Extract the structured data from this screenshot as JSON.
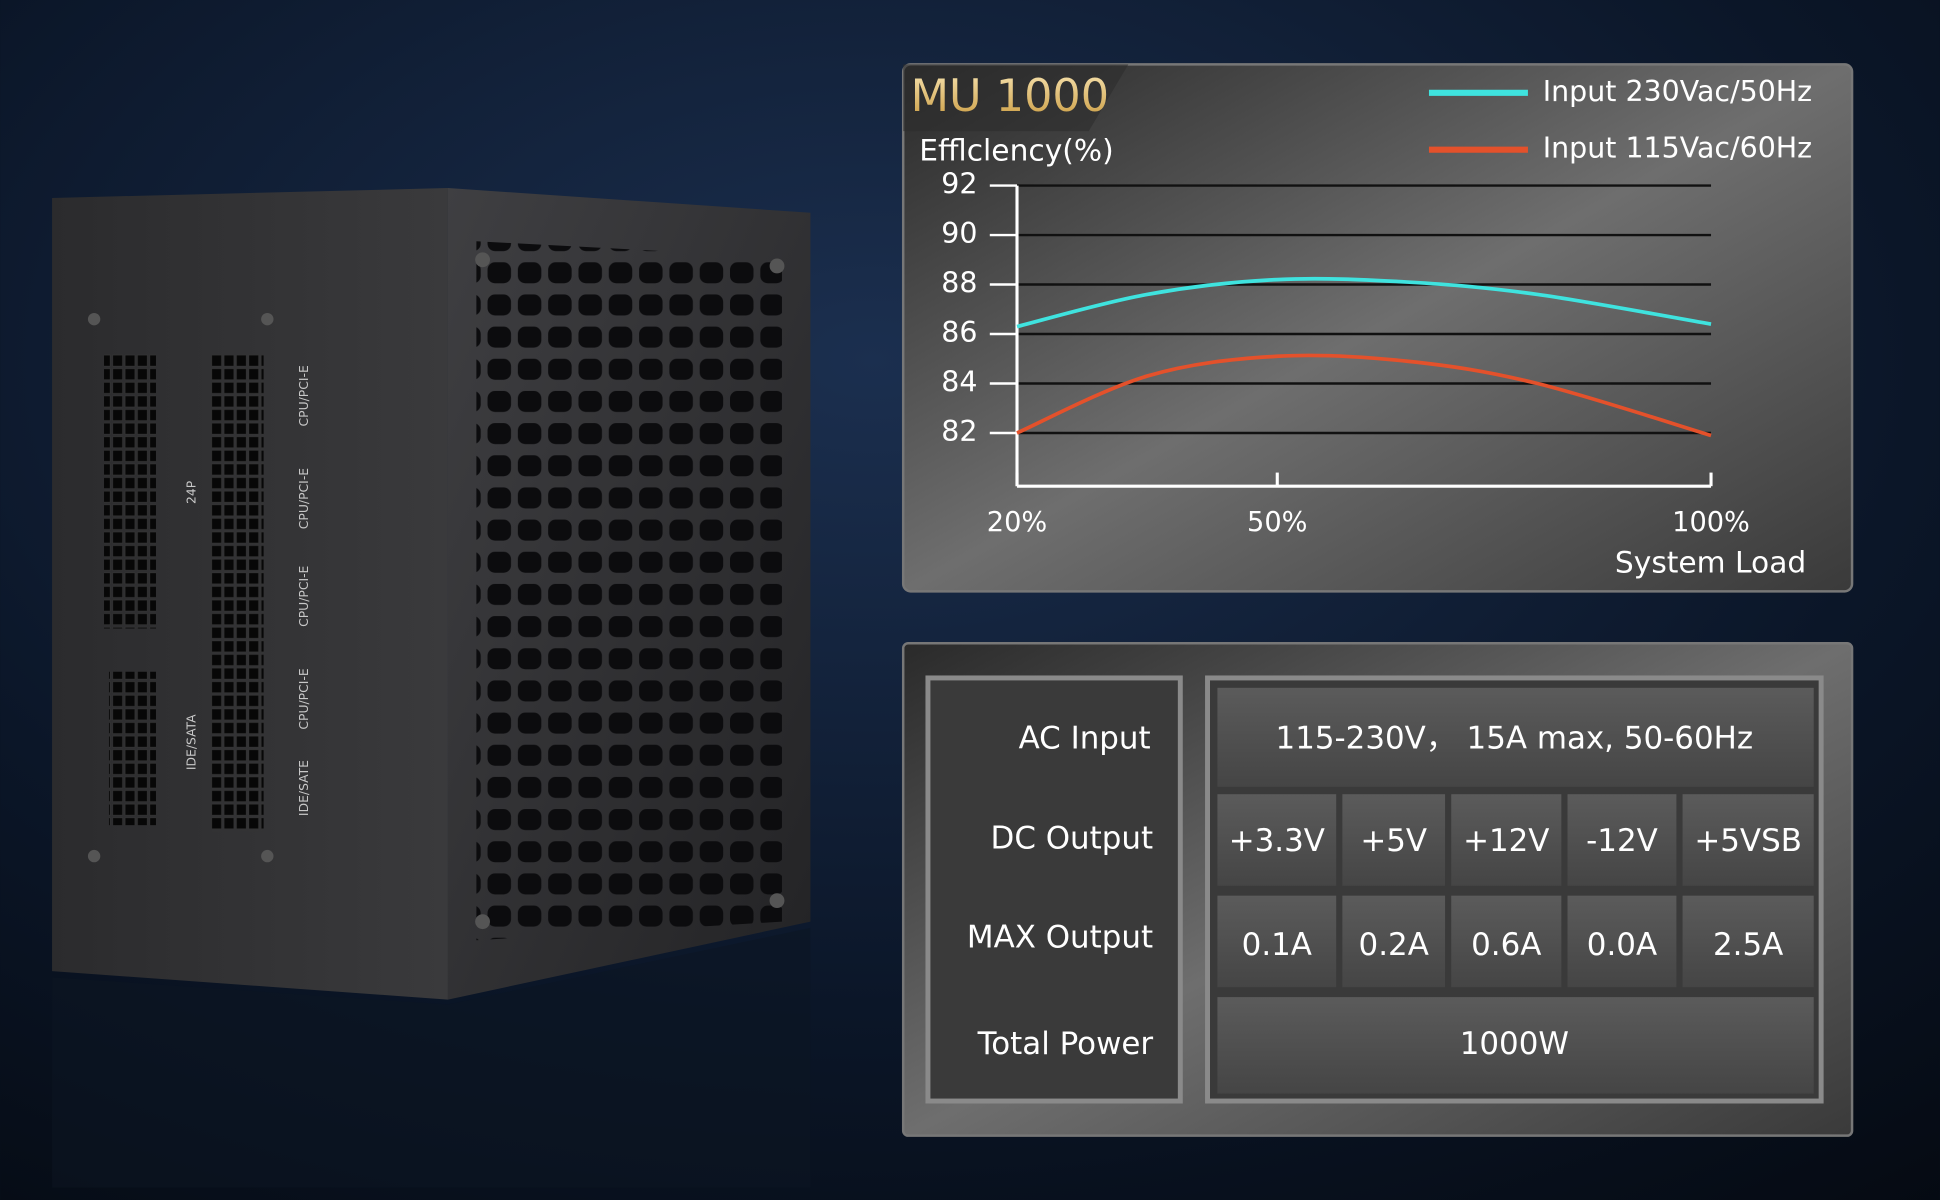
{
  "chart_data": {
    "type": "line",
    "title": "MU 1000",
    "y_label": "Efflclency(%)",
    "x_label": "System Load",
    "x": [
      20,
      35,
      50,
      65,
      80,
      100
    ],
    "series": [
      {
        "name": "Input 230Vac/50Hz",
        "color": "#3fe3df",
        "values": [
          86.3,
          87.6,
          88.2,
          88.1,
          87.6,
          86.4
        ]
      },
      {
        "name": "Input 115Vac/60Hz",
        "color": "#e4512b",
        "values": [
          82.0,
          84.3,
          85.1,
          84.9,
          84.0,
          81.9
        ]
      }
    ],
    "xlim": [
      20,
      100
    ],
    "xticks": [
      {
        "value": 20,
        "label": "20%"
      },
      {
        "value": 50,
        "label": "50%"
      },
      {
        "value": 100,
        "label": "100%"
      }
    ],
    "ylim": [
      80,
      92
    ],
    "yticks": [
      82,
      84,
      86,
      88,
      90,
      92
    ],
    "grid": true,
    "legend": "top-right"
  },
  "spec_table": {
    "row_labels": [
      "AC Input",
      "DC Output",
      "MAX Output",
      "Total Power"
    ],
    "ac_input": "115-230V， 15A max, 50-60Hz",
    "dc_output": [
      "+3.3V",
      "+5V",
      "+12V",
      "-12V",
      "+5VSB"
    ],
    "max_output": [
      "0.1A",
      "0.2A",
      "0.6A",
      "0.0A",
      "2.5A"
    ],
    "total_power": "1000W"
  },
  "product": {
    "connector_labels": [
      "24P",
      "IDE/SATA",
      "CPU/PCI-E",
      "CPU/PCI-E",
      "CPU/PCI-E",
      "CPU/PCI-E",
      "IDE/SATE"
    ]
  }
}
